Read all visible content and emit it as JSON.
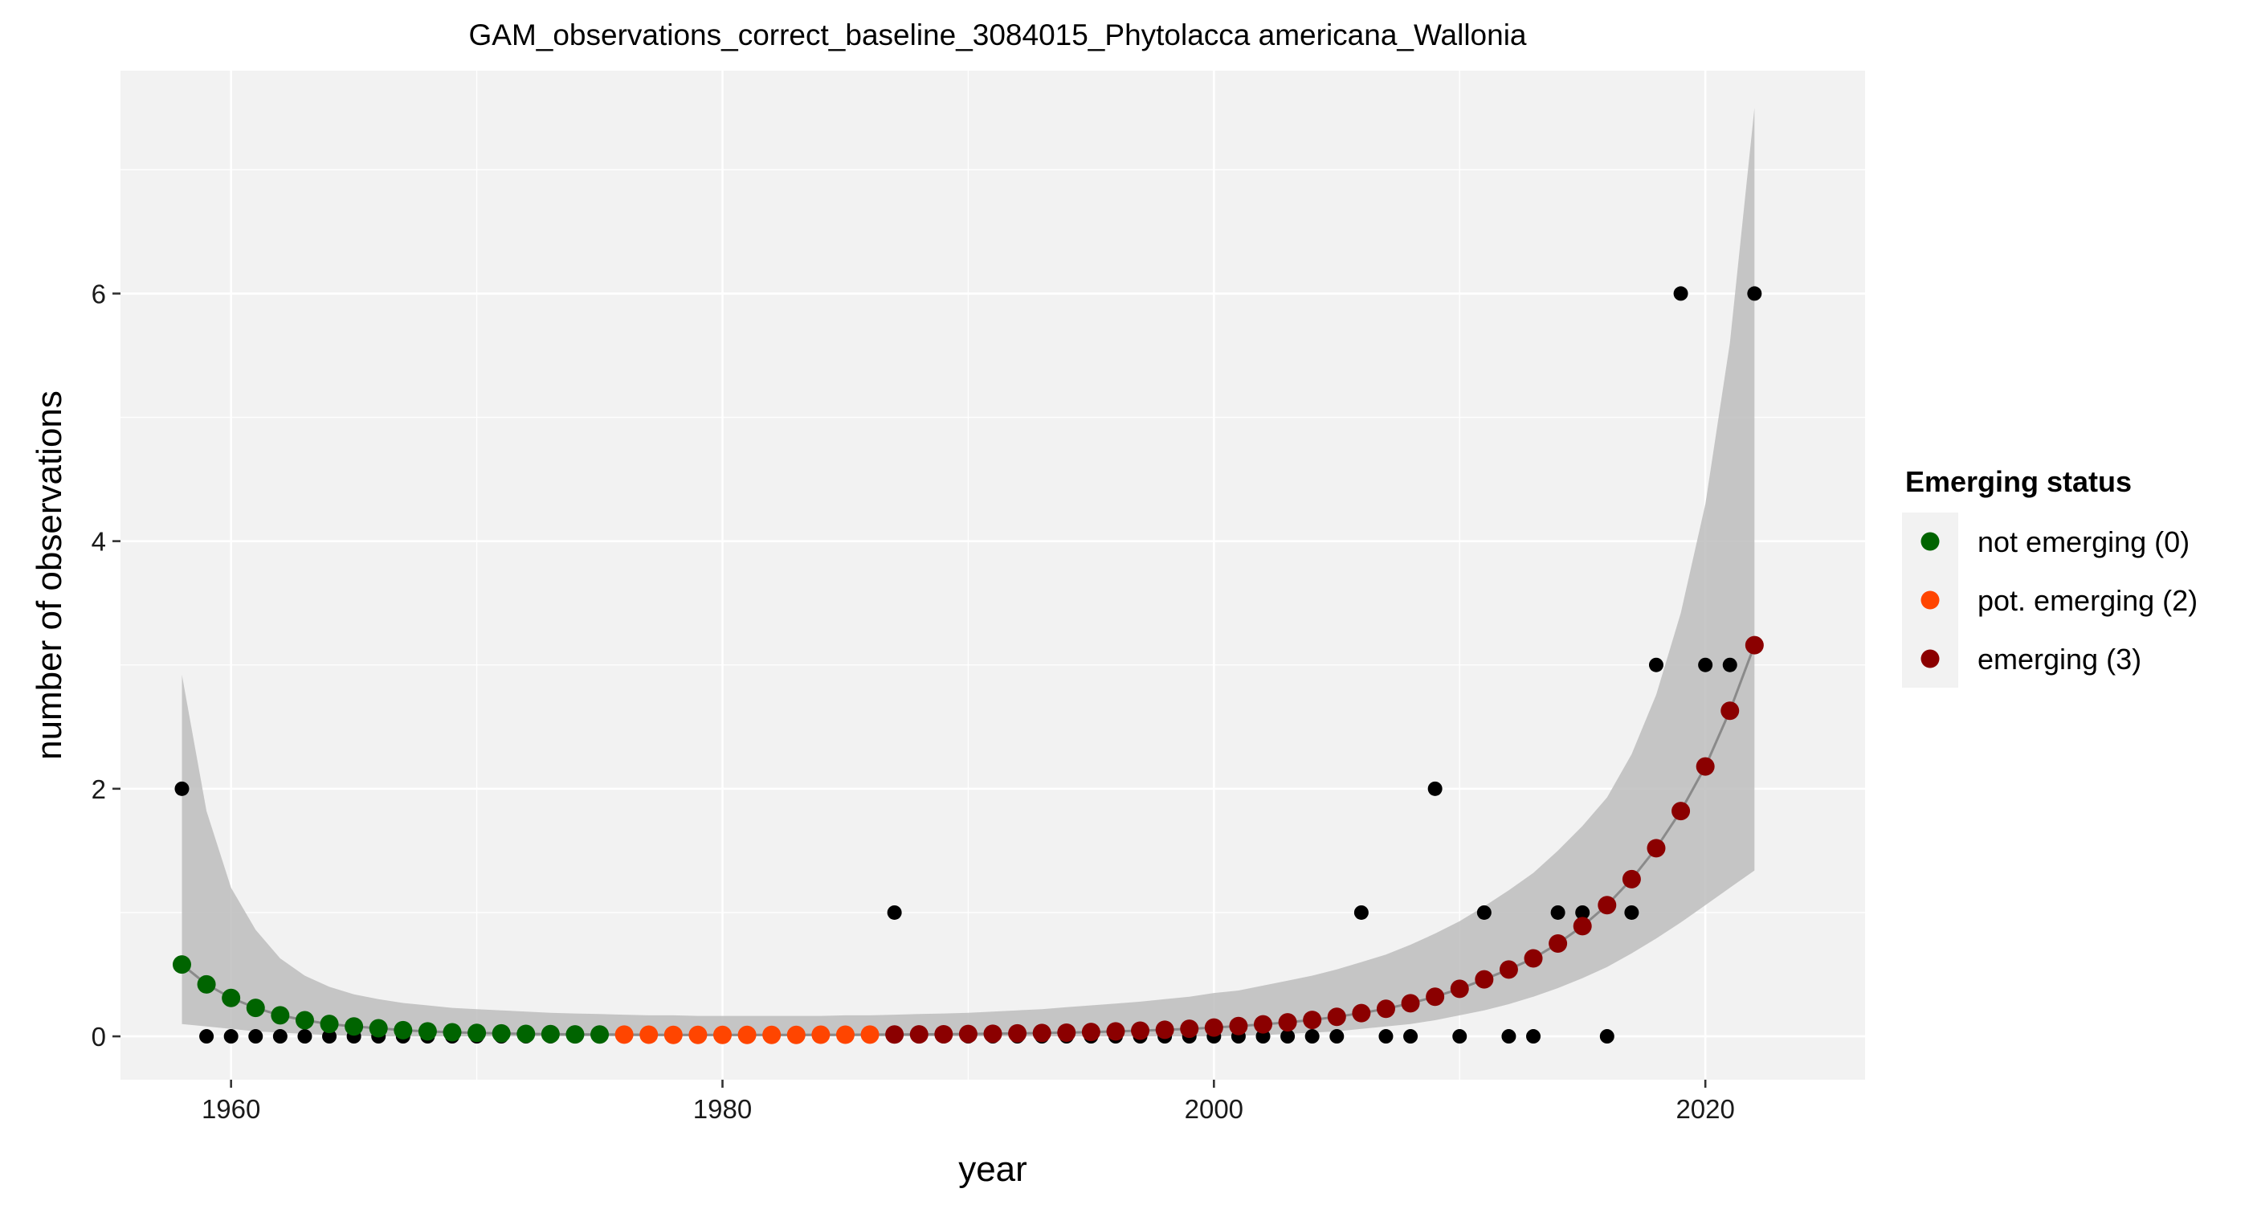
{
  "chart_data": {
    "type": "scatter",
    "title": "GAM_observations_correct_baseline_3084015_Phytolacca americana_Wallonia",
    "xlabel": "year",
    "ylabel": "number of observations",
    "xlim": [
      1955.5,
      2026.5
    ],
    "ylim": [
      -0.35,
      7.8
    ],
    "x_ticks": [
      1960,
      1980,
      2000,
      2020
    ],
    "y_ticks": [
      0,
      2,
      4,
      6
    ],
    "grid": true,
    "panel_background": "#f2f2f2",
    "legend": {
      "title": "Emerging status",
      "position": "right",
      "entries": [
        {
          "label": "not emerging (0)",
          "color": "#006400"
        },
        {
          "label": "pot. emerging (2)",
          "color": "#ff4500"
        },
        {
          "label": "emerging (3)",
          "color": "#8b0000"
        }
      ]
    },
    "series": [
      {
        "kind": "observations",
        "color": "#000000",
        "x": [
          1958,
          1959,
          1960,
          1961,
          1962,
          1963,
          1964,
          1965,
          1966,
          1967,
          1968,
          1969,
          1970,
          1971,
          1972,
          1973,
          1974,
          1975,
          1976,
          1977,
          1978,
          1979,
          1980,
          1981,
          1982,
          1983,
          1984,
          1985,
          1986,
          1987,
          1988,
          1989,
          1990,
          1991,
          1992,
          1993,
          1994,
          1995,
          1996,
          1997,
          1998,
          1999,
          2000,
          2001,
          2002,
          2003,
          2004,
          2005,
          2006,
          2007,
          2008,
          2009,
          2010,
          2011,
          2012,
          2013,
          2014,
          2015,
          2016,
          2017,
          2018,
          2019,
          2020,
          2021,
          2022
        ],
        "y": [
          2,
          0,
          0,
          0,
          0,
          0,
          0,
          0,
          0,
          0,
          0,
          0,
          0,
          0,
          0,
          0,
          0,
          0,
          0,
          0,
          0,
          0,
          0,
          0,
          0,
          0,
          0,
          0,
          0,
          1,
          0,
          0,
          0,
          0,
          0,
          0,
          0,
          0,
          0,
          0,
          0,
          0,
          0,
          0,
          0,
          0,
          0,
          0,
          1,
          0,
          0,
          2,
          0,
          1,
          0,
          0,
          1,
          1,
          0,
          1,
          3,
          6,
          3,
          3,
          6
        ]
      },
      {
        "kind": "gam_fit",
        "color": "#8a8a8a",
        "band_color": "#bdbdbd",
        "x": [
          1958,
          1959,
          1960,
          1961,
          1962,
          1963,
          1964,
          1965,
          1966,
          1967,
          1968,
          1969,
          1970,
          1971,
          1972,
          1973,
          1974,
          1975,
          1976,
          1977,
          1978,
          1979,
          1980,
          1981,
          1982,
          1983,
          1984,
          1985,
          1986,
          1987,
          1988,
          1989,
          1990,
          1991,
          1992,
          1993,
          1994,
          1995,
          1996,
          1997,
          1998,
          1999,
          2000,
          2001,
          2002,
          2003,
          2004,
          2005,
          2006,
          2007,
          2008,
          2009,
          2010,
          2011,
          2012,
          2013,
          2014,
          2015,
          2016,
          2017,
          2018,
          2019,
          2020,
          2021,
          2022
        ],
        "y": [
          0.58,
          0.42,
          0.31,
          0.23,
          0.17,
          0.13,
          0.1,
          0.08,
          0.065,
          0.05,
          0.04,
          0.033,
          0.028,
          0.024,
          0.02,
          0.018,
          0.016,
          0.015,
          0.014,
          0.013,
          0.012,
          0.012,
          0.012,
          0.012,
          0.012,
          0.012,
          0.013,
          0.013,
          0.014,
          0.015,
          0.016,
          0.017,
          0.019,
          0.021,
          0.024,
          0.027,
          0.03,
          0.035,
          0.04,
          0.046,
          0.053,
          0.061,
          0.071,
          0.083,
          0.097,
          0.113,
          0.133,
          0.158,
          0.188,
          0.223,
          0.267,
          0.32,
          0.384,
          0.46,
          0.54,
          0.63,
          0.75,
          0.89,
          1.06,
          1.27,
          1.52,
          1.82,
          2.18,
          2.63,
          3.16
        ],
        "lower": [
          0.1,
          0.08,
          0.06,
          0.04,
          0.03,
          0.02,
          0.01,
          0.005,
          0.0,
          0.0,
          0.0,
          0.0,
          0.0,
          0.0,
          0.0,
          0.0,
          0.0,
          0.0,
          0.0,
          0.0,
          0.0,
          0.0,
          0.0,
          0.0,
          0.0,
          0.0,
          0.0,
          0.0,
          0.0,
          0.0,
          0.0,
          0.0,
          0.0,
          0.0,
          0.0,
          0.0,
          0.0,
          0.0,
          0.0,
          0.0,
          0.0,
          0.0,
          0.0,
          0.005,
          0.01,
          0.02,
          0.03,
          0.04,
          0.06,
          0.08,
          0.1,
          0.13,
          0.17,
          0.21,
          0.26,
          0.32,
          0.39,
          0.47,
          0.56,
          0.67,
          0.79,
          0.92,
          1.06,
          1.2,
          1.34
        ],
        "upper": [
          2.92,
          1.82,
          1.2,
          0.86,
          0.63,
          0.49,
          0.4,
          0.34,
          0.3,
          0.27,
          0.25,
          0.23,
          0.22,
          0.21,
          0.2,
          0.19,
          0.185,
          0.18,
          0.175,
          0.17,
          0.17,
          0.165,
          0.165,
          0.165,
          0.165,
          0.165,
          0.165,
          0.17,
          0.17,
          0.175,
          0.18,
          0.185,
          0.19,
          0.2,
          0.21,
          0.22,
          0.235,
          0.25,
          0.265,
          0.28,
          0.3,
          0.32,
          0.35,
          0.37,
          0.41,
          0.45,
          0.49,
          0.54,
          0.6,
          0.66,
          0.74,
          0.83,
          0.93,
          1.05,
          1.18,
          1.32,
          1.5,
          1.7,
          1.93,
          2.28,
          2.76,
          3.42,
          4.3,
          5.6,
          7.5
        ]
      },
      {
        "name": "not emerging (0)",
        "color": "#006400",
        "x": [
          1958,
          1959,
          1960,
          1961,
          1962,
          1963,
          1964,
          1965,
          1966,
          1967,
          1968,
          1969,
          1970,
          1971,
          1972,
          1973,
          1974,
          1975
        ],
        "y": [
          0.58,
          0.42,
          0.31,
          0.23,
          0.17,
          0.13,
          0.1,
          0.08,
          0.065,
          0.05,
          0.04,
          0.033,
          0.028,
          0.024,
          0.02,
          0.018,
          0.016,
          0.015
        ]
      },
      {
        "name": "pot. emerging (2)",
        "color": "#ff4500",
        "x": [
          1976,
          1977,
          1978,
          1979,
          1980,
          1981,
          1982,
          1983,
          1984,
          1985,
          1986
        ],
        "y": [
          0.014,
          0.013,
          0.012,
          0.012,
          0.012,
          0.012,
          0.012,
          0.012,
          0.013,
          0.013,
          0.014
        ]
      },
      {
        "name": "emerging (3)",
        "color": "#8b0000",
        "x": [
          1987,
          1988,
          1989,
          1990,
          1991,
          1992,
          1993,
          1994,
          1995,
          1996,
          1997,
          1998,
          1999,
          2000,
          2001,
          2002,
          2003,
          2004,
          2005,
          2006,
          2007,
          2008,
          2009,
          2010,
          2011,
          2012,
          2013,
          2014,
          2015,
          2016,
          2017,
          2018,
          2019,
          2020,
          2021,
          2022
        ],
        "y": [
          0.015,
          0.016,
          0.017,
          0.019,
          0.021,
          0.024,
          0.027,
          0.03,
          0.035,
          0.04,
          0.046,
          0.053,
          0.061,
          0.071,
          0.083,
          0.097,
          0.113,
          0.133,
          0.158,
          0.188,
          0.223,
          0.267,
          0.32,
          0.384,
          0.46,
          0.54,
          0.63,
          0.75,
          0.89,
          1.06,
          1.27,
          1.52,
          1.82,
          2.18,
          2.63,
          3.16
        ]
      }
    ]
  }
}
